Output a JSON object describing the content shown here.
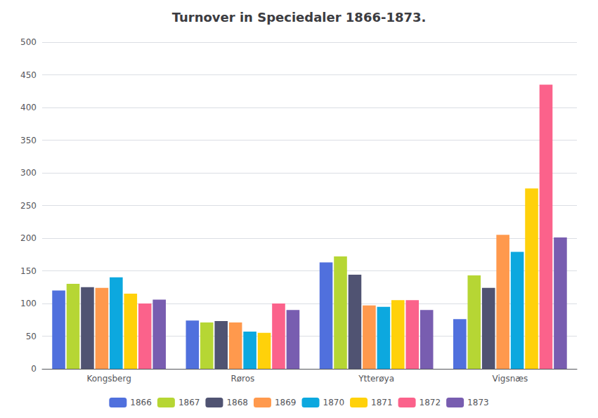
{
  "chart_data": {
    "type": "bar",
    "title": "Turnover in Speciedaler 1866-1873.",
    "categories": [
      "Kongsberg",
      "Røros",
      "Ytterøya",
      "Vigsnæs"
    ],
    "series": [
      {
        "name": "1866",
        "values": [
          120,
          74,
          163,
          76
        ]
      },
      {
        "name": "1867",
        "values": [
          130,
          71,
          172,
          143
        ]
      },
      {
        "name": "1868",
        "values": [
          125,
          73,
          144,
          124
        ]
      },
      {
        "name": "1869",
        "values": [
          124,
          71,
          97,
          205
        ]
      },
      {
        "name": "1870",
        "values": [
          140,
          57,
          95,
          179
        ]
      },
      {
        "name": "1871",
        "values": [
          115,
          55,
          105,
          276
        ]
      },
      {
        "name": "1872",
        "values": [
          100,
          100,
          105,
          435
        ]
      },
      {
        "name": "1873",
        "values": [
          106,
          90,
          90,
          201
        ]
      }
    ],
    "ylim": [
      0,
      500
    ],
    "yticks": [
      0,
      50,
      100,
      150,
      200,
      250,
      300,
      350,
      400,
      450,
      500
    ],
    "grid": true,
    "legend": "bottom"
  }
}
